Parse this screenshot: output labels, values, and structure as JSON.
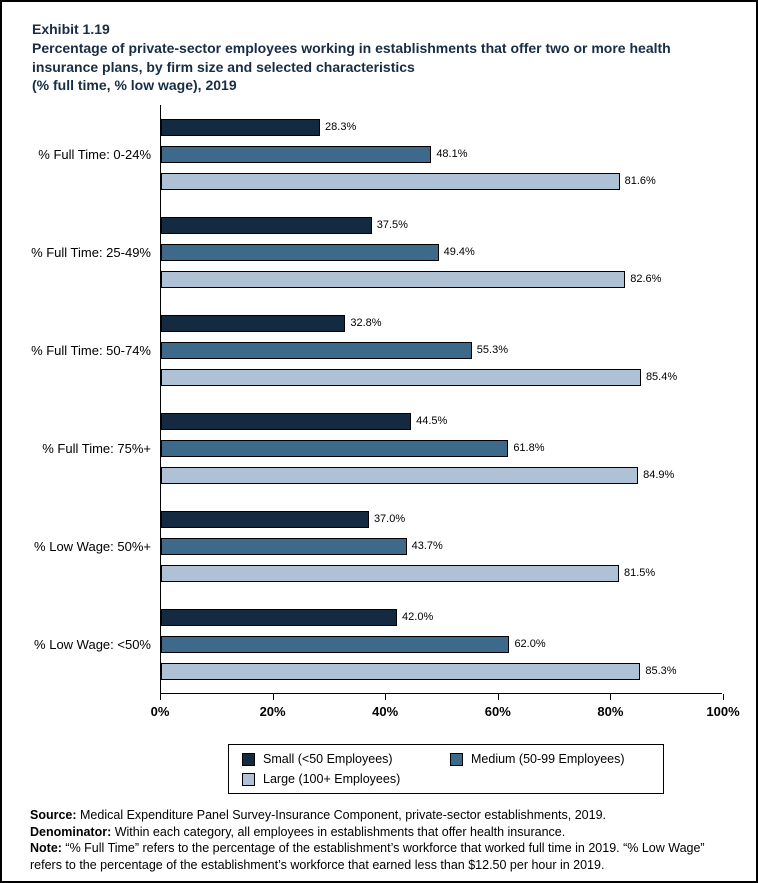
{
  "title": {
    "exhibit": "Exhibit 1.19",
    "main": "Percentage of private-sector employees working in establishments that offer two or more health insurance plans, by firm size and selected characteristics",
    "sub": "(% full time, % low wage), 2019"
  },
  "chart_data": {
    "type": "bar",
    "orientation": "horizontal",
    "title": "Percentage of private-sector employees working in establishments that offer two or more health insurance plans, by firm size and selected characteristics (% full time, % low wage), 2019",
    "categories": [
      "% Full Time: 0-24%",
      "% Full Time: 25-49%",
      "% Full Time: 50-74%",
      "% Full Time: 75%+",
      "% Low Wage: 50%+",
      "% Low Wage: <50%"
    ],
    "series": [
      {
        "name": "Small (<50 Employees)",
        "color": "#132a40",
        "values": [
          28.3,
          37.5,
          32.8,
          44.5,
          37.0,
          42.0
        ]
      },
      {
        "name": "Medium (50-99 Employees)",
        "color": "#3d6a8a",
        "values": [
          48.1,
          49.4,
          55.3,
          61.8,
          43.7,
          62.0
        ]
      },
      {
        "name": "Large (100+ Employees)",
        "color": "#afc2d5",
        "values": [
          81.6,
          82.6,
          85.4,
          84.9,
          81.5,
          85.3
        ]
      }
    ],
    "xlim": [
      0,
      100
    ],
    "x_ticks": [
      {
        "value": 0,
        "label": "0%"
      },
      {
        "value": 20,
        "label": "20%"
      },
      {
        "value": 40,
        "label": "40%"
      },
      {
        "value": 60,
        "label": "60%"
      },
      {
        "value": 80,
        "label": "80%"
      },
      {
        "value": 100,
        "label": "100%"
      }
    ],
    "value_label_suffix": "%",
    "grid": false,
    "legend_position": "bottom"
  },
  "colors": {
    "title_text": "#172d46",
    "axis": "#000000",
    "bar_border": "#000000"
  },
  "footer": {
    "source_label": "Source:",
    "source_text": " Medical Expenditure Panel Survey-Insurance Component, private-sector establishments, 2019.",
    "denominator_label": "Denominator:",
    "denominator_text": " Within each category, all employees in establishments that offer health insurance.",
    "note_label": "Note:",
    "note_text": " “% Full Time” refers to the percentage of the establishment’s workforce that worked full time in 2019. “% Low Wage” refers to the percentage of the establishment’s workforce that earned less than $12.50 per hour in 2019."
  }
}
